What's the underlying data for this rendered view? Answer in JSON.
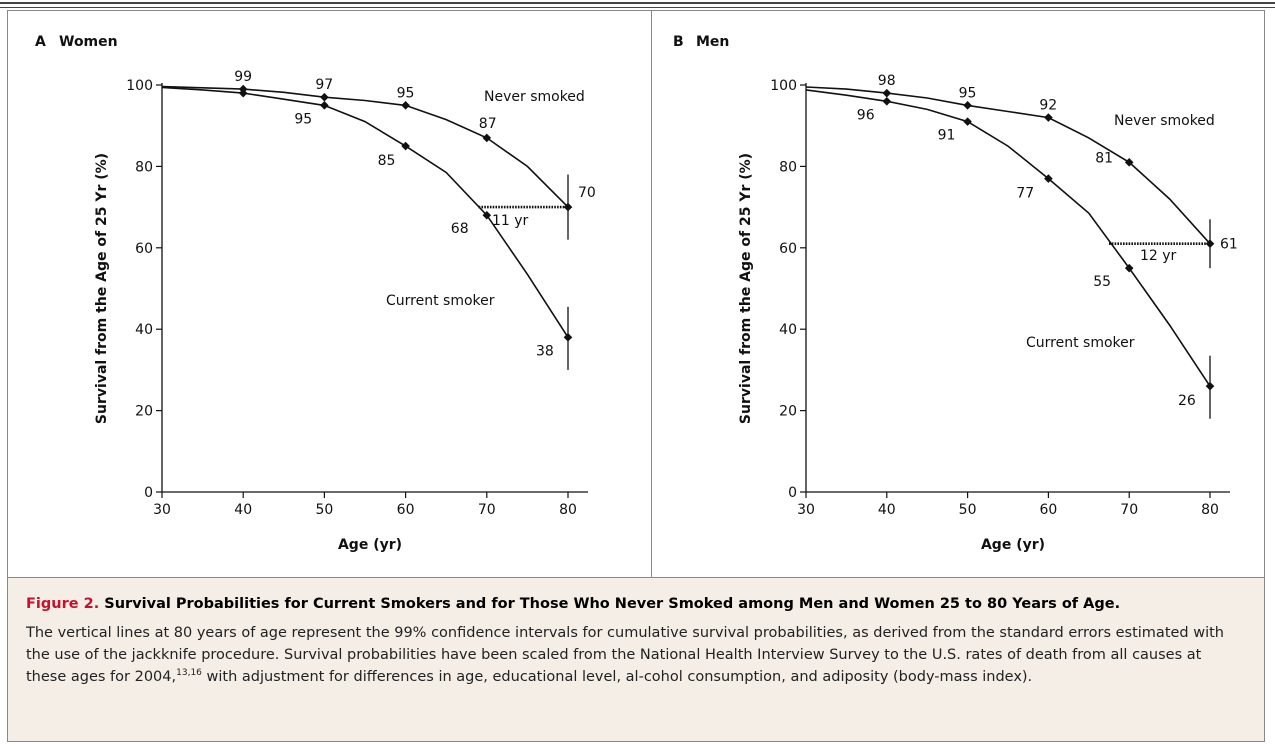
{
  "chart_data": [
    {
      "type": "line",
      "panel_letter": "A",
      "panel_title": "Women",
      "xlabel": "Age (yr)",
      "ylabel": "Survival from the Age of 25 Yr (%)",
      "xlim": [
        30,
        80
      ],
      "ylim": [
        0,
        100
      ],
      "x_ticks": [
        30,
        40,
        50,
        60,
        70,
        80
      ],
      "y_ticks": [
        0,
        20,
        40,
        60,
        80,
        100
      ],
      "series": [
        {
          "name": "Never smoked",
          "curve": [
            [
              30,
              99.6
            ],
            [
              35,
              99.3
            ],
            [
              40,
              99
            ],
            [
              45,
              98.2
            ],
            [
              50,
              97
            ],
            [
              55,
              96.2
            ],
            [
              60,
              95
            ],
            [
              65,
              91.5
            ],
            [
              70,
              87
            ],
            [
              75,
              80
            ],
            [
              80,
              70
            ]
          ],
          "markers": [
            {
              "x": 40,
              "y": 99,
              "label": "99"
            },
            {
              "x": 50,
              "y": 97,
              "label": "97"
            },
            {
              "x": 60,
              "y": 95,
              "label": "95"
            },
            {
              "x": 70,
              "y": 87,
              "label": "87"
            },
            {
              "x": 80,
              "y": 70,
              "label": "70"
            }
          ],
          "ci_80": [
            62,
            78
          ]
        },
        {
          "name": "Current smoker",
          "curve": [
            [
              30,
              99.4
            ],
            [
              35,
              98.8
            ],
            [
              40,
              98
            ],
            [
              45,
              96.5
            ],
            [
              50,
              95
            ],
            [
              55,
              91
            ],
            [
              60,
              85
            ],
            [
              65,
              78.5
            ],
            [
              70,
              68
            ],
            [
              75,
              53.5
            ],
            [
              80,
              38
            ]
          ],
          "markers": [
            {
              "x": 40,
              "y": 98,
              "label": ""
            },
            {
              "x": 50,
              "y": 95,
              "label": "95"
            },
            {
              "x": 60,
              "y": 85,
              "label": "85"
            },
            {
              "x": 70,
              "y": 68,
              "label": "68"
            },
            {
              "x": 80,
              "y": 38,
              "label": "38"
            }
          ],
          "ci_80": [
            30,
            45.5
          ]
        }
      ],
      "gap": {
        "x_start": 69,
        "x_end": 80,
        "y": 70,
        "label": "11 yr"
      }
    },
    {
      "type": "line",
      "panel_letter": "B",
      "panel_title": "Men",
      "xlabel": "Age (yr)",
      "ylabel": "Survival from the Age of 25 Yr (%)",
      "xlim": [
        30,
        80
      ],
      "ylim": [
        0,
        100
      ],
      "x_ticks": [
        30,
        40,
        50,
        60,
        70,
        80
      ],
      "y_ticks": [
        0,
        20,
        40,
        60,
        80,
        100
      ],
      "series": [
        {
          "name": "Never smoked",
          "curve": [
            [
              30,
              99.5
            ],
            [
              35,
              99
            ],
            [
              40,
              98
            ],
            [
              45,
              96.8
            ],
            [
              50,
              95
            ],
            [
              55,
              93.5
            ],
            [
              60,
              92
            ],
            [
              65,
              87
            ],
            [
              70,
              81
            ],
            [
              75,
              72
            ],
            [
              80,
              61
            ]
          ],
          "markers": [
            {
              "x": 40,
              "y": 98,
              "label": "98"
            },
            {
              "x": 50,
              "y": 95,
              "label": "95"
            },
            {
              "x": 60,
              "y": 92,
              "label": "92"
            },
            {
              "x": 70,
              "y": 81,
              "label": "81"
            },
            {
              "x": 80,
              "y": 61,
              "label": "61"
            }
          ],
          "ci_80": [
            55,
            67
          ]
        },
        {
          "name": "Current smoker",
          "curve": [
            [
              30,
              98.8
            ],
            [
              35,
              97.5
            ],
            [
              40,
              96
            ],
            [
              45,
              94
            ],
            [
              50,
              91
            ],
            [
              55,
              85
            ],
            [
              60,
              77
            ],
            [
              65,
              68.5
            ],
            [
              70,
              55
            ],
            [
              75,
              41
            ],
            [
              80,
              26
            ]
          ],
          "markers": [
            {
              "x": 40,
              "y": 96,
              "label": "96"
            },
            {
              "x": 50,
              "y": 91,
              "label": "91"
            },
            {
              "x": 60,
              "y": 77,
              "label": "77"
            },
            {
              "x": 70,
              "y": 55,
              "label": "55"
            },
            {
              "x": 80,
              "y": 26,
              "label": "26"
            }
          ],
          "ci_80": [
            18,
            33.5
          ]
        }
      ],
      "gap": {
        "x_start": 67.5,
        "x_end": 80,
        "y": 61,
        "label": "12 yr"
      }
    }
  ],
  "caption": {
    "number": "Figure 2.",
    "title": "Survival Probabilities for Current Smokers and for Those Who Never Smoked among Men and Women 25 to 80 Years of Age.",
    "text_before_refs": "The vertical lines at 80 years of age represent the 99% confidence intervals for cumulative survival probabilities, as derived from the standard errors estimated with the use of the jackknife procedure. Survival probabilities have been scaled from the National Health Interview Survey to the U.S. rates of death from all causes at these ages for 2004,",
    "refs": "13,16",
    "text_after_refs": " with adjustment for differences in age, educational level, al-cohol consumption, and adiposity (body-mass index)."
  }
}
